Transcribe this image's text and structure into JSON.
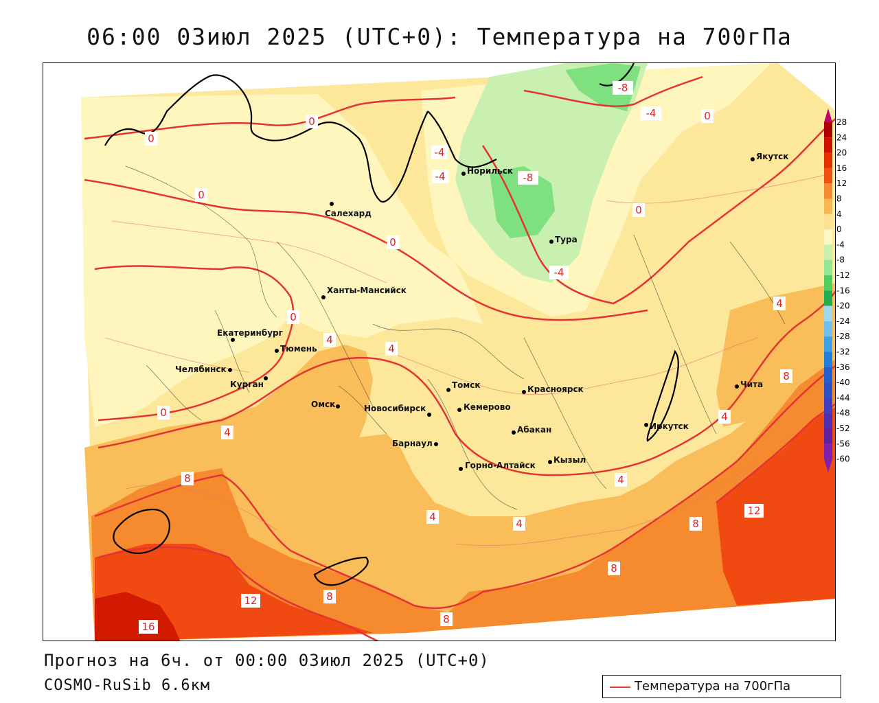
{
  "title": "06:00 03июл 2025 (UTC+0): Температура на 700гПа",
  "footer": {
    "forecast": "Прогноз на 6ч. от 00:00 03июл 2025 (UTC+0)",
    "model": "COSMO-RuSib 6.6км"
  },
  "legend": {
    "label": "Температура на 700гПа",
    "color": "#e33333"
  },
  "colorbar": {
    "ticks": [
      "28",
      "24",
      "20",
      "16",
      "12",
      "8",
      "4",
      "0",
      "-4",
      "-8",
      "-12",
      "-16",
      "-20",
      "-24",
      "-28",
      "-32",
      "-36",
      "-40",
      "-44",
      "-48",
      "-52",
      "-56",
      "-60"
    ],
    "colors": [
      "#c0006e",
      "#b00000",
      "#d11000",
      "#e63000",
      "#f05010",
      "#f58a30",
      "#f8b850",
      "#fde090",
      "#fef8c0",
      "#c8f0b0",
      "#90e890",
      "#50d060",
      "#20b050",
      "#a0d8f0",
      "#70c0f0",
      "#40a0e8",
      "#2080e0",
      "#2060d0",
      "#3050c8",
      "#4040c0",
      "#5030b0",
      "#6020a0",
      "#8020b0"
    ]
  },
  "cities": [
    {
      "name": "Салехард"
    },
    {
      "name": "Норильск"
    },
    {
      "name": "Тура"
    },
    {
      "name": "Якутск"
    },
    {
      "name": "Ханты-Мансийск"
    },
    {
      "name": "Екатеринбург"
    },
    {
      "name": "Тюмень"
    },
    {
      "name": "Челябинск"
    },
    {
      "name": "Курган"
    },
    {
      "name": "Омск"
    },
    {
      "name": "Новосибирск"
    },
    {
      "name": "Томск"
    },
    {
      "name": "Кемерово"
    },
    {
      "name": "Красноярск"
    },
    {
      "name": "Барнаул"
    },
    {
      "name": "Абакан"
    },
    {
      "name": "Горно-Алтайск"
    },
    {
      "name": "Кызыл"
    },
    {
      "name": "Иркутск"
    },
    {
      "name": "Чита"
    }
  ],
  "isolabels": [
    "-8",
    "-8",
    "-4",
    "-4",
    "-4",
    "-4",
    "0",
    "0",
    "0",
    "0",
    "0",
    "0",
    "0",
    "0",
    "4",
    "4",
    "4",
    "4",
    "4",
    "4",
    "4",
    "4",
    "8",
    "8",
    "8",
    "8",
    "8",
    "8",
    "12",
    "12",
    "16"
  ]
}
